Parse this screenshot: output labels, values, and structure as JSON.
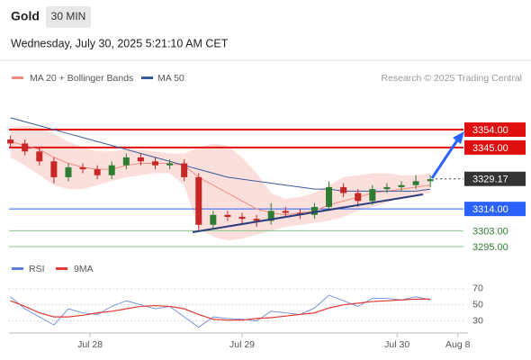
{
  "header": {
    "title": "Gold",
    "interval": "30 MIN",
    "timestamp": "Wednesday, July 30, 2025 5:21:10 AM CET",
    "credit": "Research © 2025 Trading Central"
  },
  "chart_data": [
    {
      "type": "candlestick",
      "open": [
        3349,
        3347,
        3343,
        3338,
        3330,
        3335,
        3334,
        3331,
        3336,
        3340,
        3338,
        3336,
        3337,
        3330,
        3306,
        3311,
        3310,
        3309,
        3308,
        3313,
        3312,
        3311,
        3315,
        3325,
        3322,
        3318,
        3324,
        3325,
        3326,
        3328
      ],
      "high": [
        3351,
        3349,
        3345,
        3340,
        3337,
        3337,
        3336,
        3338,
        3342,
        3342,
        3340,
        3339,
        3339,
        3332,
        3313,
        3313,
        3312,
        3311,
        3317,
        3315,
        3314,
        3317,
        3328,
        3327,
        3324,
        3326,
        3327,
        3328,
        3331,
        3331
      ],
      "low": [
        3345,
        3341,
        3336,
        3327,
        3328,
        3332,
        3329,
        3329,
        3334,
        3336,
        3334,
        3334,
        3328,
        3303,
        3304,
        3308,
        3306,
        3305,
        3306,
        3310,
        3309,
        3309,
        3313,
        3320,
        3315,
        3316,
        3322,
        3323,
        3324,
        3325
      ],
      "close": [
        3347,
        3343,
        3338,
        3330,
        3335,
        3334,
        3331,
        3336,
        3340,
        3338,
        3336,
        3337,
        3330,
        3306,
        3311,
        3310,
        3309,
        3308,
        3313,
        3312,
        3311,
        3315,
        3325,
        3322,
        3318,
        3324,
        3325,
        3326,
        3328,
        3329
      ],
      "up_color": "#2e7d32",
      "down_color": "#c62828",
      "series": [
        {
          "name": "MA 20 + Bollinger Bands",
          "color": "#f28b82",
          "values": [
            3348,
            3346,
            3344,
            3340,
            3337,
            3335,
            3334,
            3334,
            3336,
            3337,
            3337,
            3337,
            3336,
            3330,
            3326,
            3322,
            3318,
            3314,
            3312,
            3311,
            3312,
            3313,
            3316,
            3318,
            3320,
            3322,
            3323,
            3324,
            3325,
            3326
          ],
          "upper": [
            3355,
            3356,
            3355,
            3352,
            3348,
            3345,
            3343,
            3343,
            3344,
            3344,
            3343,
            3342,
            3342,
            3345,
            3347,
            3346,
            3340,
            3332,
            3322,
            3319,
            3320,
            3322,
            3326,
            3330,
            3331,
            3332,
            3332,
            3331,
            3331,
            3332
          ],
          "lower": [
            3340,
            3336,
            3331,
            3326,
            3324,
            3324,
            3326,
            3328,
            3330,
            3331,
            3332,
            3332,
            3326,
            3304,
            3300,
            3298,
            3299,
            3301,
            3303,
            3305,
            3306,
            3307,
            3308,
            3310,
            3313,
            3315,
            3317,
            3320,
            3321,
            3322
          ]
        },
        {
          "name": "MA 50",
          "color": "#3a5a99",
          "values": [
            3360,
            3358,
            3356,
            3354,
            3352,
            3350,
            3348,
            3346,
            3344,
            3342,
            3340,
            3338,
            3336,
            3334,
            3332,
            3330,
            3329,
            3328,
            3327,
            3326,
            3325,
            3324,
            3324,
            3323,
            3323,
            3323,
            3323,
            3323,
            3323,
            3324
          ]
        }
      ],
      "levels": {
        "values": [
          3354,
          3345,
          3329.17,
          3314,
          3303,
          3295
        ],
        "value_labels": [
          "3354.00",
          "3345.00",
          "3329.17",
          "3314.00",
          "3303.00",
          "3295.00"
        ],
        "colors": [
          "#e01010",
          "#e01010",
          "#333333",
          "#2962ff",
          "#66bb6a",
          "#66bb6a"
        ]
      },
      "xlim": [
        -0.1,
        31.6
      ],
      "ylim": [
        3290,
        3374
      ]
    },
    {
      "type": "line",
      "series": [
        {
          "name": "RSI",
          "color": "#5b7fd6",
          "values": [
            60,
            45,
            35,
            25,
            45,
            40,
            38,
            48,
            55,
            50,
            45,
            48,
            35,
            22,
            35,
            33,
            32,
            30,
            42,
            40,
            38,
            46,
            62,
            55,
            48,
            58,
            58,
            56,
            60,
            56
          ]
        },
        {
          "name": "9MA",
          "color": "#e53935",
          "values": [
            55,
            48,
            40,
            35,
            35,
            37,
            40,
            42,
            45,
            48,
            49,
            48,
            45,
            38,
            32,
            31,
            31,
            33,
            34,
            36,
            38,
            40,
            46,
            50,
            52,
            54,
            55,
            56,
            57,
            57
          ]
        }
      ],
      "xlim": [
        -0.1,
        31.6
      ],
      "ylim": [
        15,
        82
      ],
      "yticks": [
        30,
        50,
        70
      ],
      "xticks": [
        {
          "value": 5.5,
          "label": "Jul 28"
        },
        {
          "value": 16,
          "label": "Jul 29"
        },
        {
          "value": 26.7,
          "label": "Jul 30"
        },
        {
          "value": 30.9,
          "label": "Aug 8"
        }
      ]
    }
  ]
}
